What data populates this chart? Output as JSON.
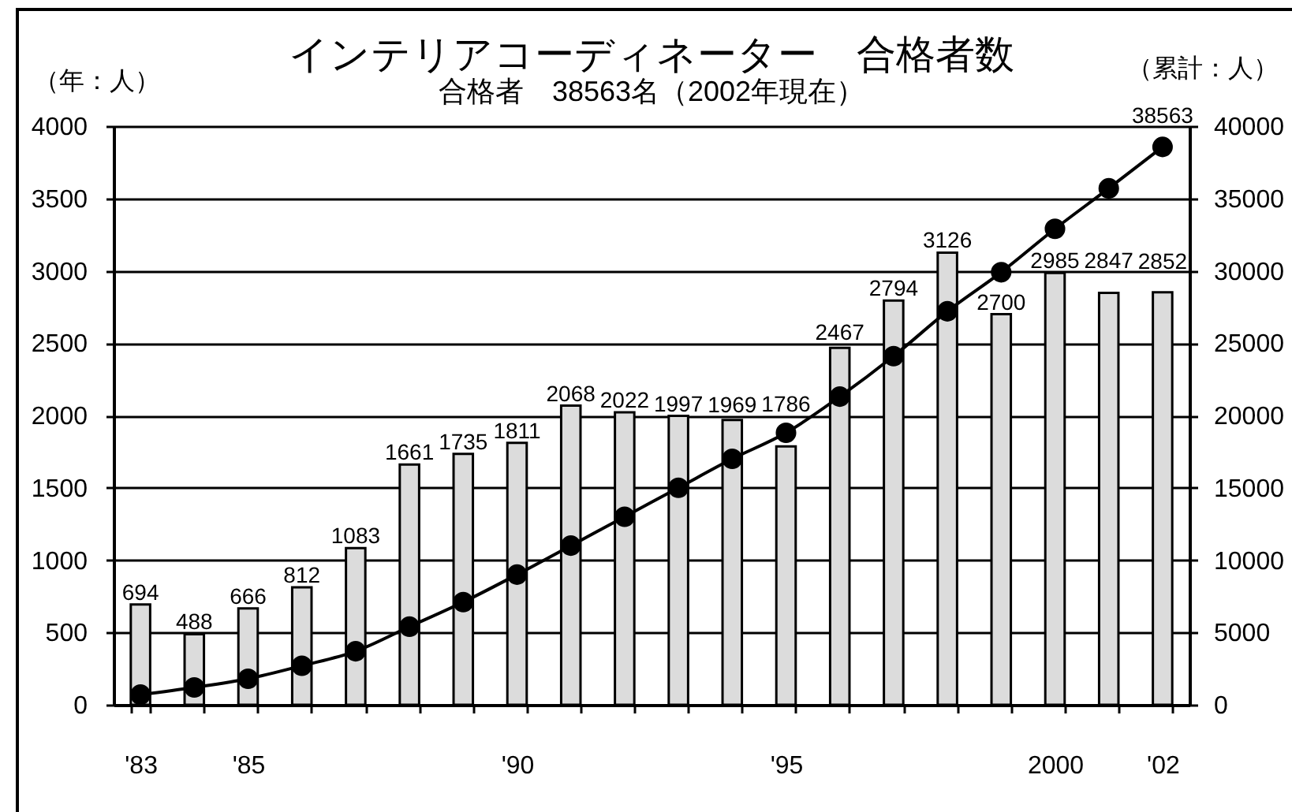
{
  "chart_data": {
    "type": "bar",
    "title": "インテリアコーディネーター　合格者数",
    "subtitle": "合格者　38563名（2002年現在）",
    "ylabel": "（年：人）",
    "y2label": "（累計：人）",
    "categories": [
      "'83",
      null,
      "'85",
      null,
      null,
      null,
      null,
      "'90",
      null,
      null,
      null,
      null,
      "'95",
      null,
      null,
      null,
      null,
      "2000",
      null,
      "'02"
    ],
    "series": [
      {
        "color": "#dcdcdc",
        "values": [
          694,
          488,
          666,
          812,
          1083,
          1661,
          1735,
          1811,
          2068,
          2022,
          1997,
          1969,
          1786,
          2467,
          2794,
          3126,
          2700,
          2985,
          2847,
          2852
        ],
        "value_labels": [
          "694",
          "488",
          "666",
          "812",
          "1083",
          "1661",
          "1735",
          "1811",
          "2068",
          "2022",
          "1997",
          "1969",
          "1786",
          "2467",
          "2794",
          "3126",
          "2700",
          "2985",
          "2847",
          "2852"
        ]
      },
      {
        "type": "line",
        "axis": "y2",
        "color": "#000000",
        "values": [
          700,
          1200,
          1800,
          2700,
          3700,
          5400,
          7100,
          9000,
          11000,
          13000,
          15000,
          17000,
          18800,
          21300,
          24100,
          27200,
          29900,
          32900,
          35700,
          38563
        ],
        "value_labels": [
          null,
          null,
          null,
          null,
          null,
          null,
          null,
          null,
          null,
          null,
          null,
          null,
          null,
          null,
          null,
          null,
          null,
          null,
          null,
          "38563"
        ]
      }
    ],
    "ylim": [
      0,
      4000
    ],
    "yticks": [
      0,
      500,
      1000,
      1500,
      2000,
      2500,
      3000,
      3500,
      4000
    ],
    "y2lim": [
      0,
      40000
    ],
    "y2ticks": [
      0,
      5000,
      10000,
      15000,
      20000,
      25000,
      30000,
      35000,
      40000
    ],
    "grid": "y",
    "marker": "circle",
    "line_style": "solid"
  }
}
